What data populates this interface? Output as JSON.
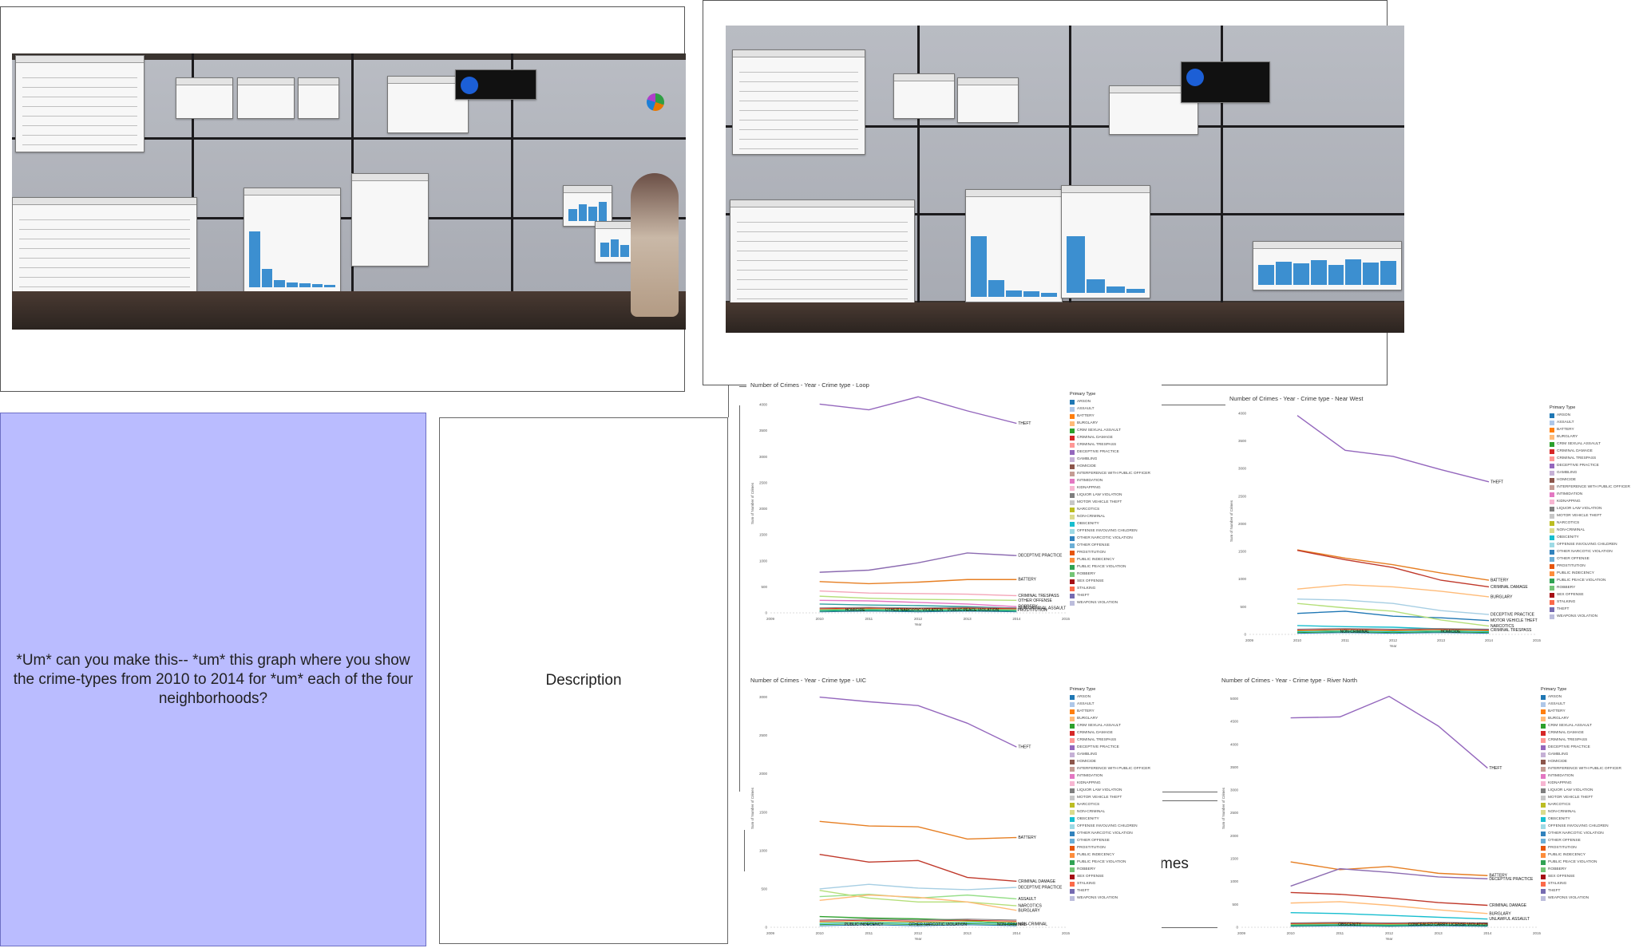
{
  "utterance": {
    "text": "*Um* can you make this-- *um* this graph where you show the crime-types from 2010 to 2014 for *um* each of the four neighborhoods?"
  },
  "description": {
    "label": "Description"
  },
  "partial_label": {
    "text": "mes"
  },
  "colors": {
    "utterance_bg": "#babcff",
    "bar_blue": "#3c8fd0",
    "theft_line": "#9467bd"
  },
  "legend_title": "Primary Type",
  "charts": [
    {
      "title": "Number of Crimes - Year - Crime type - Loop",
      "ylabel": "Sum of Number of Crimes",
      "xlabel": "Year",
      "x_ticks": [
        "2009",
        "2010",
        "2011",
        "2012",
        "2013",
        "2014",
        "2015"
      ],
      "y_ticks": [
        "0",
        "500",
        "1000",
        "1500",
        "2000",
        "2500",
        "3000",
        "3500",
        "4000"
      ],
      "ylim": [
        0,
        4200
      ],
      "series": [
        {
          "name": "THEFT",
          "color": "#9467bd",
          "values": [
            4010,
            3900,
            4150,
            3880,
            3640
          ]
        },
        {
          "name": "DECEPTIVE PRACTICE",
          "color": "#8c6bb1",
          "values": [
            780,
            820,
            960,
            1150,
            1100
          ]
        },
        {
          "name": "BATTERY",
          "color": "#e67e22",
          "values": [
            600,
            560,
            590,
            640,
            640
          ]
        },
        {
          "name": "CRIMINAL TRESPASS",
          "color": "#f4a6b8",
          "values": [
            420,
            380,
            370,
            360,
            330
          ]
        },
        {
          "name": "OTHER OFFENSE",
          "color": "#b5df7a",
          "values": [
            320,
            280,
            260,
            250,
            240
          ]
        },
        {
          "name": "NON-CRIMINAL ASSAULT",
          "color": "#2f9e9e",
          "values": [
            170,
            150,
            140,
            120,
            90
          ]
        },
        {
          "name": "ROBBERY",
          "color": "#e377c2",
          "values": [
            240,
            230,
            200,
            170,
            120
          ]
        }
      ],
      "bottom_labels": [
        "HOMICIDE",
        "OTHER NARCOTIC VIOLATION",
        "PUBLIC PEACE VIOLATION",
        "PROSTITUTION"
      ]
    },
    {
      "title": "Number of Crimes - Year - Crime type - Near West",
      "ylabel": "Sum of Number of Crimes",
      "xlabel": "Year",
      "x_ticks": [
        "2009",
        "2010",
        "2011",
        "2012",
        "2013",
        "2014",
        "2015"
      ],
      "y_ticks": [
        "0",
        "500",
        "1000",
        "1500",
        "2000",
        "2500",
        "3000",
        "3500",
        "4000"
      ],
      "ylim": [
        0,
        4100
      ],
      "series": [
        {
          "name": "THEFT",
          "color": "#9467bd",
          "values": [
            3960,
            3330,
            3220,
            2980,
            2760
          ]
        },
        {
          "name": "BATTERY",
          "color": "#e67e22",
          "values": [
            1530,
            1380,
            1260,
            1110,
            980
          ]
        },
        {
          "name": "CRIMINAL DAMAGE",
          "color": "#c0392b",
          "values": [
            1520,
            1350,
            1210,
            980,
            860
          ]
        },
        {
          "name": "BURGLARY",
          "color": "#ffbb78",
          "values": [
            820,
            900,
            860,
            780,
            680
          ]
        },
        {
          "name": "DECEPTIVE PRACTICE",
          "color": "#a6cee3",
          "values": [
            640,
            620,
            560,
            430,
            360
          ]
        },
        {
          "name": "MOTOR VEHICLE THEFT",
          "color": "#1f77b4",
          "values": [
            380,
            420,
            330,
            300,
            250
          ]
        },
        {
          "name": "NARCOTICS",
          "color": "#b5df7a",
          "values": [
            560,
            480,
            420,
            260,
            150
          ]
        },
        {
          "name": "CRIMINAL TRESPASS",
          "color": "#17becf",
          "values": [
            160,
            140,
            130,
            100,
            80
          ]
        }
      ],
      "bottom_labels": [
        "NON-CRIMINAL",
        "HOMICIDE"
      ]
    },
    {
      "title": "Number of Crimes - Year - Crime type - UIC",
      "ylabel": "Sum of Number of Crimes",
      "xlabel": "Year",
      "x_ticks": [
        "2009",
        "2010",
        "2011",
        "2012",
        "2013",
        "2014",
        "2015"
      ],
      "y_ticks": [
        "0",
        "500",
        "1000",
        "1500",
        "2000",
        "2500",
        "3000"
      ],
      "ylim": [
        0,
        3100
      ],
      "series": [
        {
          "name": "THEFT",
          "color": "#9467bd",
          "values": [
            3000,
            2940,
            2890,
            2660,
            2350
          ]
        },
        {
          "name": "BATTERY",
          "color": "#e67e22",
          "values": [
            1380,
            1320,
            1310,
            1150,
            1170
          ]
        },
        {
          "name": "CRIMINAL DAMAGE",
          "color": "#c0392b",
          "values": [
            950,
            850,
            870,
            650,
            600
          ]
        },
        {
          "name": "DECEPTIVE PRACTICE",
          "color": "#a6cee3",
          "values": [
            500,
            560,
            510,
            490,
            520
          ]
        },
        {
          "name": "ASSAULT",
          "color": "#98df8a",
          "values": [
            400,
            430,
            380,
            420,
            370
          ]
        },
        {
          "name": "NARCOTICS",
          "color": "#b5df7a",
          "values": [
            480,
            380,
            330,
            330,
            280
          ]
        },
        {
          "name": "BURGLARY",
          "color": "#ffbb78",
          "values": [
            350,
            420,
            390,
            330,
            220
          ]
        },
        {
          "name": "NON-CRIMINAL",
          "color": "#2ca02c",
          "values": [
            140,
            120,
            110,
            90,
            40
          ]
        }
      ],
      "bottom_labels": [
        "PUBLIC INDECENCY",
        "OTHER NARCOTIC VIOLATION",
        "NON-CRIMINAL"
      ]
    },
    {
      "title": "Number of Crimes - Year - Crime type - River North",
      "ylabel": "Sum of Number of Crimes",
      "xlabel": "Year",
      "x_ticks": [
        "2009",
        "2010",
        "2011",
        "2012",
        "2013",
        "2014",
        "2015"
      ],
      "y_ticks": [
        "0",
        "500",
        "1000",
        "1500",
        "2000",
        "2500",
        "3000",
        "3500",
        "4000",
        "4500",
        "5000"
      ],
      "ylim": [
        0,
        5200
      ],
      "series": [
        {
          "name": "THEFT",
          "color": "#9467bd",
          "values": [
            4580,
            4600,
            5050,
            4400,
            3480
          ]
        },
        {
          "name": "BATTERY",
          "color": "#e67e22",
          "values": [
            1430,
            1260,
            1330,
            1180,
            1130
          ]
        },
        {
          "name": "DECEPTIVE PRACTICE",
          "color": "#8c6bb1",
          "values": [
            900,
            1280,
            1200,
            1100,
            1060
          ]
        },
        {
          "name": "CRIMINAL DAMAGE",
          "color": "#c0392b",
          "values": [
            760,
            720,
            640,
            540,
            480
          ]
        },
        {
          "name": "BURGLARY",
          "color": "#ffbb78",
          "values": [
            530,
            560,
            480,
            380,
            300
          ]
        },
        {
          "name": "UNLAWFUL ASSAULT",
          "color": "#17becf",
          "values": [
            320,
            300,
            260,
            220,
            180
          ]
        }
      ],
      "bottom_labels": [
        "OBSCENITY",
        "CONCEALED CARRY LICENSE VIOLATION"
      ]
    }
  ],
  "legend_entries": [
    {
      "label": "ARSON",
      "color": "#1f77b4"
    },
    {
      "label": "ASSAULT",
      "color": "#aec7e8"
    },
    {
      "label": "BATTERY",
      "color": "#ff7f0e"
    },
    {
      "label": "BURGLARY",
      "color": "#ffbb78"
    },
    {
      "label": "CRIM SEXUAL ASSAULT",
      "color": "#2ca02c"
    },
    {
      "label": "CRIMINAL DAMAGE",
      "color": "#d62728"
    },
    {
      "label": "CRIMINAL TRESPASS",
      "color": "#ff9896"
    },
    {
      "label": "DECEPTIVE PRACTICE",
      "color": "#9467bd"
    },
    {
      "label": "GAMBLING",
      "color": "#c5b0d5"
    },
    {
      "label": "HOMICIDE",
      "color": "#8c564b"
    },
    {
      "label": "INTERFERENCE WITH PUBLIC OFFICER",
      "color": "#c49c94"
    },
    {
      "label": "INTIMIDATION",
      "color": "#e377c2"
    },
    {
      "label": "KIDNAPPING",
      "color": "#f7b6d2"
    },
    {
      "label": "LIQUOR LAW VIOLATION",
      "color": "#7f7f7f"
    },
    {
      "label": "MOTOR VEHICLE THEFT",
      "color": "#c7c7c7"
    },
    {
      "label": "NARCOTICS",
      "color": "#bcbd22"
    },
    {
      "label": "NON-CRIMINAL",
      "color": "#dbdb8d"
    },
    {
      "label": "OBSCENITY",
      "color": "#17becf"
    },
    {
      "label": "OFFENSE INVOLVING CHILDREN",
      "color": "#9edae5"
    },
    {
      "label": "OTHER NARCOTIC VIOLATION",
      "color": "#3182bd"
    },
    {
      "label": "OTHER OFFENSE",
      "color": "#6baed6"
    },
    {
      "label": "PROSTITUTION",
      "color": "#e6550d"
    },
    {
      "label": "PUBLIC INDECENCY",
      "color": "#fd8d3c"
    },
    {
      "label": "PUBLIC PEACE VIOLATION",
      "color": "#31a354"
    },
    {
      "label": "ROBBERY",
      "color": "#74c476"
    },
    {
      "label": "SEX OFFENSE",
      "color": "#a50f15"
    },
    {
      "label": "STALKING",
      "color": "#fb6a4a"
    },
    {
      "label": "THEFT",
      "color": "#756bb1"
    },
    {
      "label": "WEAPONS VIOLATION",
      "color": "#bcbddc"
    }
  ]
}
